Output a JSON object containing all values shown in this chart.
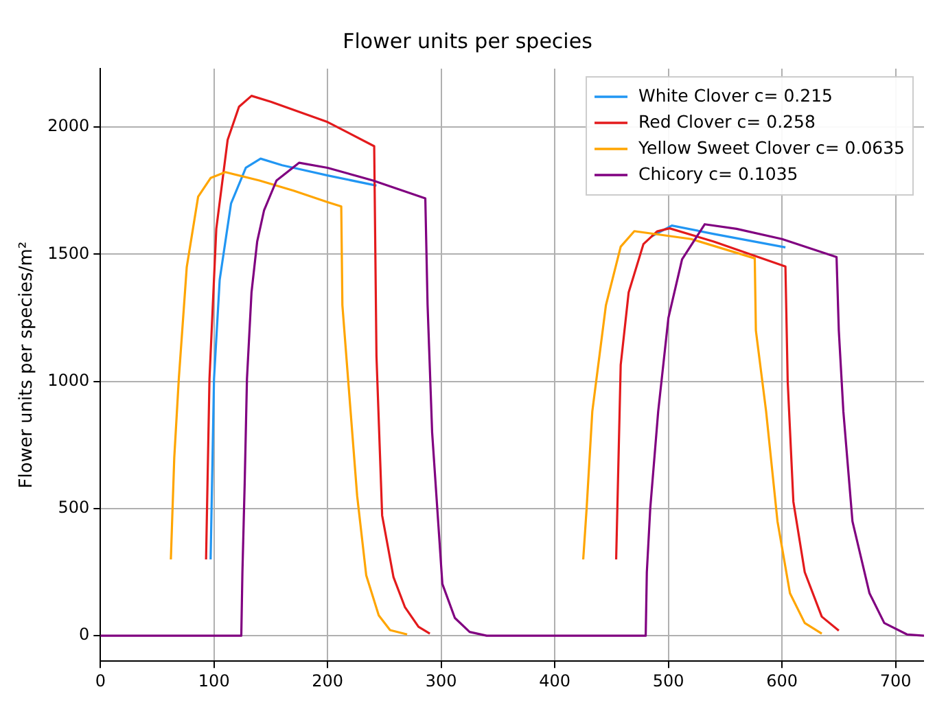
{
  "chart_data": {
    "type": "line",
    "title": "Flower units per species",
    "ylabel": "Flower units per species/m²",
    "xlim": [
      0,
      725
    ],
    "xticks": [
      0,
      100,
      200,
      300,
      400,
      500,
      600,
      700
    ],
    "ylim": [
      -100,
      2230
    ],
    "yticks": [
      0,
      500,
      1000,
      1500,
      2000
    ],
    "grid": true,
    "legend": "top right",
    "marker": "none",
    "line_style": "solid",
    "series": [
      {
        "name": "White Clover c= 0.215",
        "color": "#2196f3",
        "x": [
          97,
          100,
          105,
          115,
          128,
          141,
          160,
          200,
          243,
          300,
          485,
          503,
          540,
          603
        ],
        "values": [
          300,
          1010,
          1400,
          1700,
          1840,
          1876,
          1850,
          1810,
          1770,
          null,
          1570,
          1613,
          1580,
          1527
        ]
      },
      {
        "name": "Red Clover c= 0.258",
        "color": "#e31a1c",
        "x": [
          93,
          96,
          102,
          112,
          122,
          133,
          150,
          200,
          241,
          243,
          248,
          258,
          268,
          280,
          290,
          400,
          454,
          458,
          465,
          478,
          490,
          501,
          540,
          603,
          605,
          610,
          620,
          635,
          650
        ],
        "values": [
          300,
          1010,
          1600,
          1950,
          2080,
          2123,
          2100,
          2020,
          1925,
          1100,
          473,
          230,
          113,
          35,
          8,
          null,
          300,
          1065,
          1350,
          1540,
          1590,
          1602,
          1550,
          1452,
          1000,
          527,
          250,
          75,
          20
        ]
      },
      {
        "name": "Yellow Sweet Clover c= 0.0635",
        "color": "#ffa500",
        "x": [
          62,
          65,
          69,
          76,
          86,
          97,
          110,
          140,
          170,
          200,
          212,
          213,
          218,
          226,
          234,
          245,
          255,
          270,
          400,
          425,
          428,
          433,
          445,
          458,
          470,
          520,
          576,
          577,
          586,
          596,
          607,
          620,
          635
        ],
        "values": [
          300,
          700,
          1010,
          1450,
          1726,
          1800,
          1823,
          1790,
          1750,
          1705,
          1688,
          1300,
          1010,
          550,
          237,
          80,
          22,
          5,
          null,
          300,
          500,
          882,
          1300,
          1530,
          1591,
          1560,
          1484,
          1200,
          882,
          450,
          167,
          50,
          8
        ]
      },
      {
        "name": "Chicory c= 0.1035",
        "color": "#800080",
        "x": [
          0,
          124,
          125,
          127,
          129,
          133,
          138,
          144,
          155,
          175,
          200,
          240,
          286,
          288,
          292,
          301,
          312,
          325,
          340,
          480,
          481,
          484,
          491,
          500,
          512,
          532,
          560,
          600,
          648,
          650,
          654,
          662,
          677,
          690,
          710,
          725
        ],
        "values": [
          0,
          0,
          250,
          600,
          1010,
          1350,
          1550,
          1672,
          1790,
          1860,
          1840,
          1790,
          1720,
          1300,
          800,
          204,
          70,
          15,
          0,
          0,
          250,
          500,
          882,
          1250,
          1480,
          1618,
          1600,
          1560,
          1489,
          1200,
          882,
          450,
          167,
          50,
          5,
          0
        ]
      }
    ]
  }
}
